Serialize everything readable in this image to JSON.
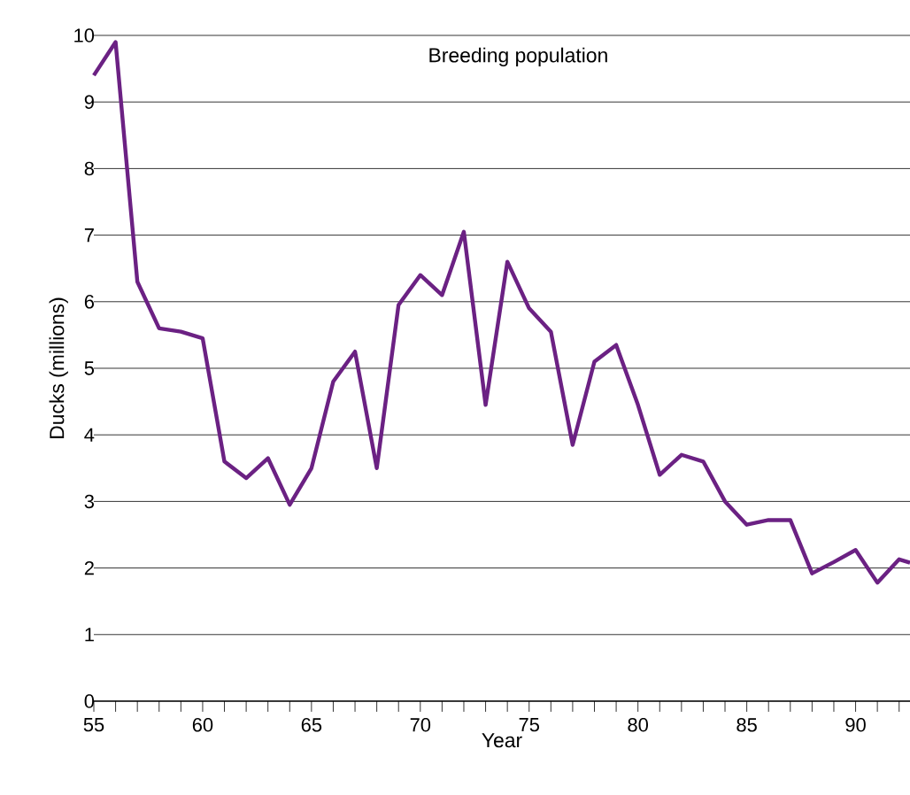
{
  "chart_data": {
    "type": "line",
    "title": "Breeding population",
    "xlabel": "Year",
    "ylabel": "Ducks (millions)",
    "x": [
      55,
      56,
      57,
      58,
      59,
      60,
      61,
      62,
      63,
      64,
      65,
      66,
      67,
      68,
      69,
      70,
      71,
      72,
      73,
      74,
      75,
      76,
      77,
      78,
      79,
      80,
      81,
      82,
      83,
      84,
      85,
      86,
      87,
      88,
      89,
      90,
      91,
      92,
      92.5
    ],
    "series": [
      {
        "color": "#6b2183",
        "values": [
          9.4,
          9.9,
          6.3,
          5.6,
          5.55,
          5.45,
          3.6,
          3.35,
          3.65,
          2.95,
          3.5,
          4.8,
          5.25,
          3.5,
          5.95,
          6.4,
          6.1,
          7.05,
          4.45,
          6.6,
          5.9,
          5.55,
          3.85,
          5.1,
          5.35,
          4.45,
          3.4,
          3.7,
          3.6,
          3.0,
          2.65,
          2.72,
          2.72,
          1.92,
          2.09,
          2.27,
          1.78,
          2.13,
          2.08
        ]
      }
    ],
    "xlim": [
      55,
      92.5
    ],
    "ylim": [
      0,
      10
    ],
    "xticks": [
      55,
      {
        "value": 56,
        "label": null
      },
      {
        "value": 57,
        "label": null
      },
      {
        "value": 58,
        "label": null
      },
      {
        "value": 59,
        "label": null
      },
      60,
      {
        "value": 61,
        "label": null
      },
      {
        "value": 62,
        "label": null
      },
      {
        "value": 63,
        "label": null
      },
      {
        "value": 64,
        "label": null
      },
      65,
      {
        "value": 66,
        "label": null
      },
      {
        "value": 67,
        "label": null
      },
      {
        "value": 68,
        "label": null
      },
      {
        "value": 69,
        "label": null
      },
      70,
      {
        "value": 71,
        "label": null
      },
      {
        "value": 72,
        "label": null
      },
      {
        "value": 73,
        "label": null
      },
      {
        "value": 74,
        "label": null
      },
      75,
      {
        "value": 76,
        "label": null
      },
      {
        "value": 77,
        "label": null
      },
      {
        "value": 78,
        "label": null
      },
      {
        "value": 79,
        "label": null
      },
      80,
      {
        "value": 81,
        "label": null
      },
      {
        "value": 82,
        "label": null
      },
      {
        "value": 83,
        "label": null
      },
      {
        "value": 84,
        "label": null
      },
      85,
      {
        "value": 86,
        "label": null
      },
      {
        "value": 87,
        "label": null
      },
      {
        "value": 88,
        "label": null
      },
      {
        "value": 89,
        "label": null
      },
      90,
      {
        "value": 91,
        "label": null
      },
      {
        "value": 92,
        "label": null
      }
    ],
    "yticks": [
      0,
      1,
      2,
      3,
      4,
      5,
      6,
      7,
      8,
      9,
      10
    ],
    "grid": "y",
    "marker": "none",
    "line_style": "solid"
  }
}
